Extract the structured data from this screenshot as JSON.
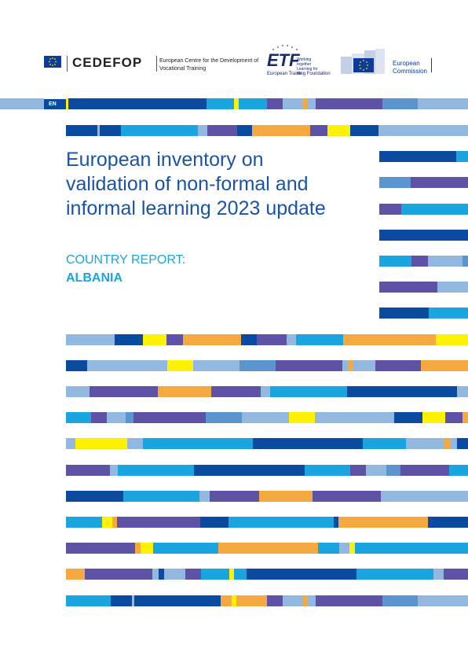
{
  "language_tag": "EN",
  "logos": {
    "cedefop_wordmark": "CEDEFOP",
    "cedefop_description": "European Centre for the Development of Vocational Training",
    "etf_wordmark": "ETF",
    "etf_slogan": "Working together Learning for life",
    "etf_name": "European Training Foundation",
    "ec_name": "European Commission"
  },
  "title": "European inventory on validation of non-formal and informal learning 2023 update",
  "subtitle": "COUNTRY REPORT:",
  "country": "ALBANIA",
  "colors": {
    "dark_blue": "#0a4aa0",
    "cyan": "#1aa5e0",
    "light_blue": "#93b8e0",
    "mid_blue": "#5a95d0",
    "purple": "#5e52a6",
    "orange": "#f7a941",
    "yellow": "#fff200",
    "title_blue": "#1a54a8"
  }
}
